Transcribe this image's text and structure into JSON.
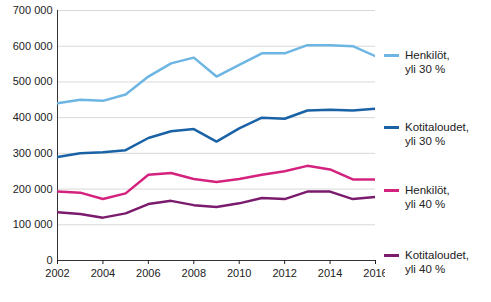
{
  "chart_data": {
    "type": "line",
    "x": [
      2002,
      2003,
      2004,
      2005,
      2006,
      2007,
      2008,
      2009,
      2010,
      2011,
      2012,
      2013,
      2014,
      2015,
      2016
    ],
    "xlim": [
      2002,
      2016
    ],
    "xticks": [
      2002,
      2004,
      2006,
      2008,
      2010,
      2012,
      2014,
      2016
    ],
    "ylim": [
      0,
      700000
    ],
    "yticks": [
      0,
      {
        "value": 100000,
        "label": "100 000"
      },
      {
        "value": 200000,
        "label": "200 000"
      },
      {
        "value": 300000,
        "label": "300 000"
      },
      {
        "value": 400000,
        "label": "400 000"
      },
      {
        "value": 500000,
        "label": "500 000"
      },
      {
        "value": 600000,
        "label": "600 000"
      },
      {
        "value": 700000,
        "label": "700 000"
      }
    ],
    "grid": true,
    "legend": "right",
    "series": [
      {
        "name": "Henkilöt, yli 30 %",
        "color": "#6db5e3",
        "values": [
          440000,
          450000,
          447000,
          465000,
          515000,
          552000,
          568000,
          515000,
          548000,
          580000,
          580000,
          603000,
          603000,
          600000,
          572000
        ]
      },
      {
        "name": "Kotitaloudet, yli 30 %",
        "color": "#1a62a6",
        "values": [
          290000,
          300000,
          303000,
          309000,
          343000,
          362000,
          368000,
          333000,
          370000,
          400000,
          397000,
          420000,
          422000,
          420000,
          425000
        ]
      },
      {
        "name": "Henkilöt, yli 40 %",
        "color": "#d4237f",
        "values": [
          193000,
          190000,
          172000,
          188000,
          240000,
          245000,
          228000,
          220000,
          228000,
          240000,
          250000,
          265000,
          255000,
          227000,
          227000
        ]
      },
      {
        "name": "Kotitaloudet, yli 40 %",
        "color": "#7a1b6d",
        "values": [
          135000,
          130000,
          120000,
          132000,
          158000,
          167000,
          155000,
          150000,
          160000,
          175000,
          172000,
          193000,
          193000,
          172000,
          178000
        ]
      }
    ]
  }
}
